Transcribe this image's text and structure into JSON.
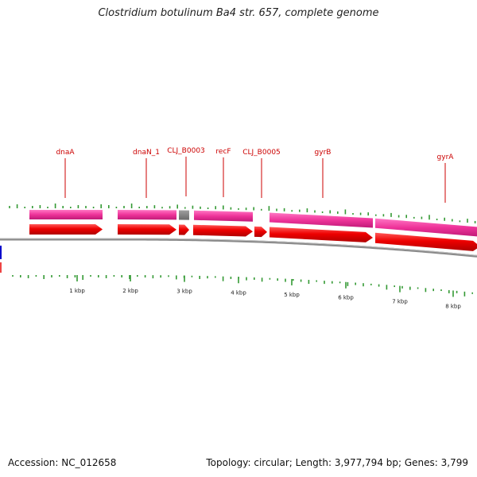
{
  "title": "Clostridium botulinum Ba4 str. 657, complete genome",
  "footer": {
    "accession": "Accession: NC_012658",
    "topology": "Topology: circular; Length: 3,977,794 bp; Genes: 3,799"
  },
  "colors": {
    "gene_label": "#cc0000",
    "cds_arrow": "#ee0000",
    "gene_bar": "#ee3399",
    "gene_bar_grey": "#808080",
    "backbone": "#8a8a8a",
    "gc_tick": "#339933",
    "origin_blue": "#0000cc",
    "origin_red": "#ee4444"
  },
  "gene_labels": [
    "dnaA",
    "dnaN_1",
    "CLJ_B0003",
    "recF",
    "CLJ_B0005",
    "gyrB",
    "gyrA"
  ],
  "ruler_labels": [
    "1 kbp",
    "2 kbp",
    "3 kbp",
    "4 kbp",
    "5 kbp",
    "6 kbp",
    "7 kbp",
    "8 kbp"
  ]
}
